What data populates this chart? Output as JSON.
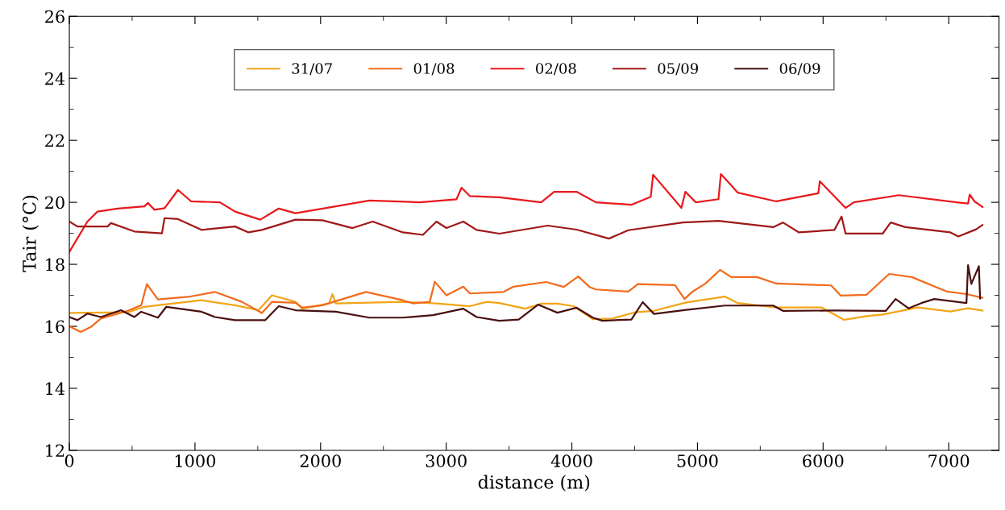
{
  "chart_data": {
    "type": "line",
    "xlabel": "distance (m)",
    "ylabel": "Tair (°C)",
    "xlim": [
      0,
      7400
    ],
    "xticks": [
      0,
      1000,
      2000,
      3000,
      4000,
      5000,
      6000,
      7000
    ],
    "ylim": [
      12,
      26
    ],
    "yticks": [
      12,
      14,
      16,
      18,
      20,
      22,
      24,
      26
    ],
    "grid": false,
    "legend": "top",
    "marker": "none",
    "line_style": "solid",
    "series": [
      {
        "name": "31/07",
        "color": "#f2a516",
        "x": [
          0,
          465,
          598,
          705,
          1052,
          1319,
          1506,
          1613,
          1800,
          1854,
          2067,
          2094,
          2121,
          2655,
          2922,
          3189,
          3323,
          3423,
          3628,
          3756,
          3885,
          4013,
          4167,
          4321,
          4500,
          4654,
          4910,
          5218,
          5321,
          5628,
          5987,
          6167,
          6346,
          6474,
          6756,
          7013,
          7154,
          7269
        ],
        "values": [
          16.43,
          16.45,
          16.63,
          16.68,
          16.84,
          16.68,
          16.52,
          17.0,
          16.79,
          16.57,
          16.74,
          17.04,
          16.74,
          16.79,
          16.74,
          16.65,
          16.79,
          16.75,
          16.57,
          16.73,
          16.73,
          16.65,
          16.23,
          16.25,
          16.45,
          16.5,
          16.77,
          16.96,
          16.75,
          16.61,
          16.61,
          16.21,
          16.33,
          16.38,
          16.61,
          16.48,
          16.58,
          16.51
        ]
      },
      {
        "name": "01/08",
        "color": "#f26b1d",
        "x": [
          0,
          91,
          171,
          251,
          465,
          572,
          617,
          705,
          946,
          1159,
          1373,
          1533,
          1613,
          1800,
          1854,
          2014,
          2361,
          2655,
          2735,
          2869,
          2909,
          3002,
          3136,
          3189,
          3456,
          3536,
          3795,
          3936,
          4051,
          4141,
          4192,
          4449,
          4526,
          4821,
          4897,
          4961,
          5064,
          5180,
          5269,
          5474,
          5628,
          6064,
          6141,
          6346,
          6526,
          6705,
          6987,
          7141,
          7269
        ],
        "values": [
          16.0,
          15.82,
          15.98,
          16.25,
          16.5,
          16.68,
          17.36,
          16.87,
          16.95,
          17.11,
          16.79,
          16.43,
          16.79,
          16.76,
          16.6,
          16.68,
          17.11,
          16.84,
          16.74,
          16.79,
          17.44,
          17.0,
          17.28,
          17.06,
          17.11,
          17.28,
          17.43,
          17.27,
          17.61,
          17.27,
          17.19,
          17.12,
          17.36,
          17.33,
          16.88,
          17.12,
          17.38,
          17.82,
          17.59,
          17.59,
          17.38,
          17.32,
          16.99,
          17.02,
          17.69,
          17.59,
          17.12,
          17.04,
          16.92
        ]
      },
      {
        "name": "02/08",
        "color": "#e8191c",
        "x": [
          0,
          144,
          224,
          385,
          598,
          625,
          678,
          758,
          865,
          970,
          1199,
          1319,
          1520,
          1667,
          1800,
          2121,
          2388,
          2788,
          3082,
          3122,
          3189,
          3423,
          3756,
          3859,
          4038,
          4192,
          4474,
          4628,
          4647,
          4872,
          4904,
          4987,
          5167,
          5186,
          5269,
          5321,
          5628,
          5962,
          5974,
          6179,
          6244,
          6603,
          7064,
          7154,
          7167,
          7205,
          7269
        ],
        "values": [
          18.4,
          19.38,
          19.7,
          19.8,
          19.87,
          19.98,
          19.76,
          19.81,
          20.4,
          20.03,
          20.0,
          19.7,
          19.44,
          19.8,
          19.65,
          19.87,
          20.06,
          20.0,
          20.1,
          20.47,
          20.2,
          20.16,
          20.0,
          20.34,
          20.34,
          20.0,
          19.92,
          20.18,
          20.89,
          19.82,
          20.34,
          20.0,
          20.1,
          20.91,
          20.55,
          20.31,
          20.03,
          20.29,
          20.68,
          19.82,
          20.0,
          20.23,
          20.0,
          19.96,
          20.25,
          20.03,
          19.85
        ]
      },
      {
        "name": "05/09",
        "color": "#a01818",
        "x": [
          0,
          64,
          304,
          331,
          518,
          737,
          758,
          865,
          1052,
          1319,
          1426,
          1533,
          1800,
          2014,
          2254,
          2415,
          2655,
          2815,
          2922,
          3002,
          3136,
          3242,
          3423,
          3808,
          4038,
          4295,
          4449,
          4884,
          5167,
          5603,
          5680,
          5808,
          6090,
          6147,
          6179,
          6474,
          6538,
          6654,
          7013,
          7077,
          7218,
          7269
        ],
        "values": [
          19.38,
          19.22,
          19.22,
          19.33,
          19.06,
          19.0,
          19.49,
          19.46,
          19.11,
          19.22,
          19.03,
          19.11,
          19.44,
          19.42,
          19.17,
          19.38,
          19.03,
          18.95,
          19.38,
          19.17,
          19.38,
          19.11,
          18.99,
          19.25,
          19.12,
          18.83,
          19.1,
          19.35,
          19.4,
          19.2,
          19.35,
          19.03,
          19.11,
          19.54,
          18.99,
          18.99,
          19.35,
          19.2,
          19.03,
          18.9,
          19.13,
          19.27
        ]
      },
      {
        "name": "06/09",
        "color": "#4a0f0f",
        "x": [
          0,
          64,
          144,
          251,
          411,
          518,
          572,
          705,
          772,
          1052,
          1159,
          1319,
          1560,
          1667,
          1800,
          2121,
          2388,
          2655,
          2896,
          3136,
          3242,
          3423,
          3577,
          3731,
          3885,
          4038,
          4167,
          4244,
          4474,
          4564,
          4654,
          4910,
          5218,
          5603,
          5680,
          6090,
          6500,
          6577,
          6680,
          6782,
          6885,
          7141,
          7154,
          7180,
          7240,
          7250
        ],
        "values": [
          16.3,
          16.2,
          16.41,
          16.3,
          16.52,
          16.3,
          16.47,
          16.28,
          16.63,
          16.47,
          16.3,
          16.2,
          16.2,
          16.65,
          16.52,
          16.47,
          16.28,
          16.28,
          16.36,
          16.57,
          16.3,
          16.18,
          16.22,
          16.7,
          16.44,
          16.6,
          16.28,
          16.18,
          16.22,
          16.78,
          16.4,
          16.53,
          16.67,
          16.67,
          16.5,
          16.51,
          16.5,
          16.88,
          16.58,
          16.75,
          16.88,
          16.75,
          17.97,
          17.37,
          17.94,
          16.9
        ]
      }
    ]
  }
}
